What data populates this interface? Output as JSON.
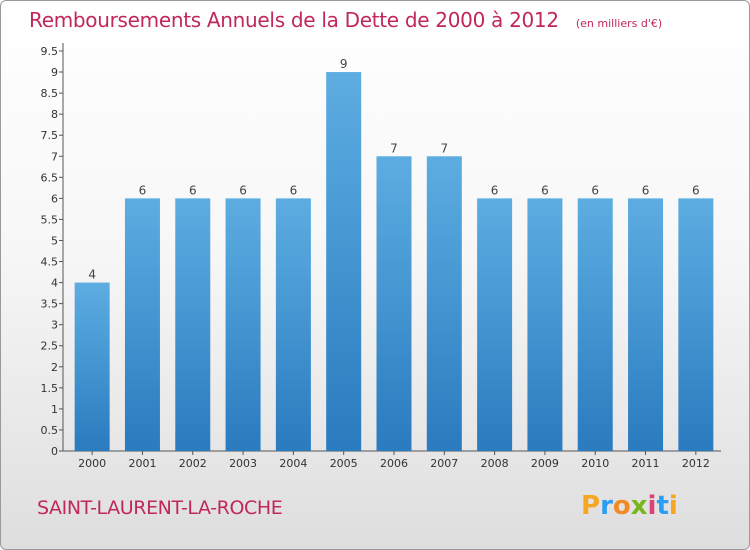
{
  "header": {
    "title": "Remboursements Annuels de la Dette de 2000 à 2012",
    "unit": "(en milliers d'€)"
  },
  "footer": {
    "place": "SAINT-LAURENT-LA-ROCHE",
    "logo": [
      "P",
      "r",
      "o",
      "x",
      "i",
      "t",
      "i"
    ]
  },
  "colors": {
    "bar_light": "#5dade2",
    "bar_dark": "#2a7bbf",
    "title": "#c0285a"
  },
  "chart_data": {
    "type": "bar",
    "title": "Remboursements Annuels de la Dette de 2000 à 2012",
    "subtitle": "(en milliers d'€)",
    "categories": [
      "2000",
      "2001",
      "2002",
      "2003",
      "2004",
      "2005",
      "2006",
      "2007",
      "2008",
      "2009",
      "2010",
      "2011",
      "2012"
    ],
    "values": [
      4,
      6,
      6,
      6,
      6,
      9,
      7,
      7,
      6,
      6,
      6,
      6,
      6
    ],
    "data_labels": [
      "4",
      "6",
      "6",
      "6",
      "6",
      "9",
      "7",
      "7",
      "6",
      "6",
      "6",
      "6",
      "6"
    ],
    "yticks": [
      "0",
      "0.5",
      "1",
      "1.5",
      "2",
      "2.5",
      "3",
      "3.5",
      "4",
      "4.5",
      "5",
      "5.5",
      "6",
      "6.5",
      "7",
      "7.5",
      "8",
      "8.5",
      "9",
      "9.5"
    ],
    "ylim": [
      0,
      9.5
    ],
    "grid": false,
    "xlabel": "",
    "ylabel": ""
  }
}
